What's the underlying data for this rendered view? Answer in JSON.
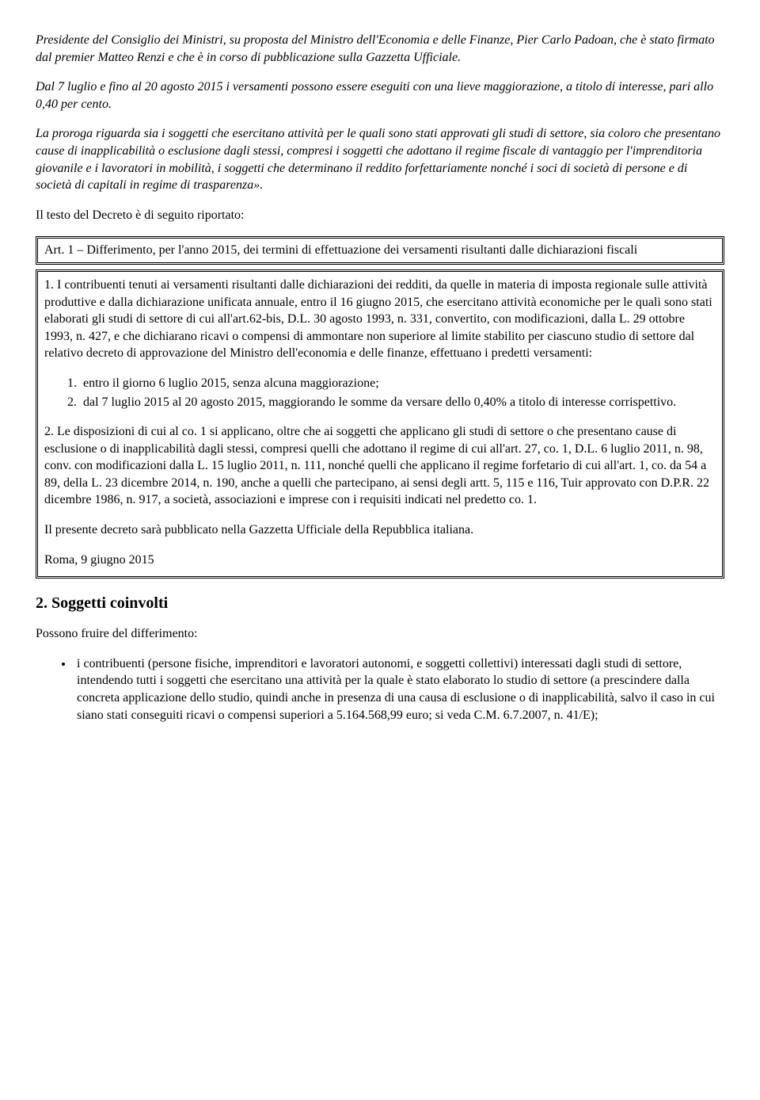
{
  "intro": {
    "p1": "Presidente del Consiglio dei Ministri, su proposta del Ministro dell'Economia e delle Finanze, Pier Carlo Padoan, che è stato firmato dal premier Matteo Renzi e che è in corso di pubblicazione sulla Gazzetta Ufficiale.",
    "p2": "Dal 7 luglio e fino al 20 agosto 2015 i versamenti possono essere eseguiti con una lieve maggiorazione, a titolo di interesse, pari allo 0,40 per cento.",
    "p3": "La proroga riguarda sia i soggetti che esercitano attività per le quali sono stati approvati gli studi di settore, sia coloro che presentano cause di inapplicabilità o esclusione dagli stessi, compresi i soggetti che adottano il regime fiscale di vantaggio per l'imprenditoria giovanile e i lavoratori in mobilità, i soggetti che determinano il reddito forfettariamente nonché i soci di società di persone e di società di capitali in regime di trasparenza».",
    "p4": "Il testo del Decreto è di seguito riportato:"
  },
  "box_title": "Art. 1 – Differimento, per l'anno 2015, dei termini di effettuazione dei versamenti risultanti dalle dichiarazioni fiscali",
  "body": {
    "p1": "1. I contribuenti tenuti ai versamenti risultanti dalle dichiarazioni dei redditi, da quelle in materia di imposta regionale sulle attività produttive e dalla dichiarazione unificata annuale, entro il 16 giugno 2015, che esercitano attività economiche per le quali sono stati elaborati gli studi di settore di cui all'art.62-bis, D.L. 30 agosto 1993, n. 331, convertito, con modificazioni, dalla L. 29 ottobre 1993, n. 427, e che dichiarano ricavi o compensi di ammontare non superiore al limite stabilito per ciascuno studio di settore dal relativo decreto di approvazione del Ministro dell'economia e delle finanze, effettuano i predetti versamenti:",
    "li1": "entro il giorno 6 luglio 2015, senza alcuna maggiorazione;",
    "li2": "dal 7 luglio 2015 al 20 agosto 2015, maggiorando le somme da versare dello 0,40% a titolo di interesse corrispettivo.",
    "p2": "2. Le disposizioni di cui al co. 1 si applicano, oltre che ai soggetti che applicano gli studi di settore o che presentano cause di esclusione o di inapplicabilità dagli stessi, compresi quelli che adottano il regime di cui all'art. 27, co. 1, D.L. 6 luglio 2011, n. 98, conv. con modificazioni dalla L. 15 luglio 2011, n. 111, nonché quelli che applicano il regime forfetario di cui all'art. 1, co. da 54 a 89, della L. 23 dicembre 2014, n. 190, anche a quelli che partecipano, ai sensi degli artt. 5, 115 e 116, Tuir approvato con D.P.R. 22 dicembre 1986, n. 917, a società, associazioni e imprese con i requisiti indicati nel predetto co. 1.",
    "p3": "Il presente decreto sarà pubblicato nella Gazzetta Ufficiale della Repubblica italiana.",
    "p4": "Roma, 9 giugno 2015"
  },
  "section2": {
    "heading": "2. Soggetti coinvolti",
    "p1": "Possono fruire del differimento:",
    "bullet1": "i contribuenti (persone fisiche, imprenditori e lavoratori autonomi, e soggetti collettivi) interessati dagli studi di settore, intendendo tutti i soggetti che esercitano una attività per la quale è stato elaborato lo studio di settore (a prescindere dalla concreta applicazione dello studio, quindi anche in presenza di una causa di esclusione o di inapplicabilità, salvo il caso in cui siano stati conseguiti ricavi o compensi superiori a 5.164.568,99 euro; si veda C.M. 6.7.2007, n. 41/E);"
  }
}
